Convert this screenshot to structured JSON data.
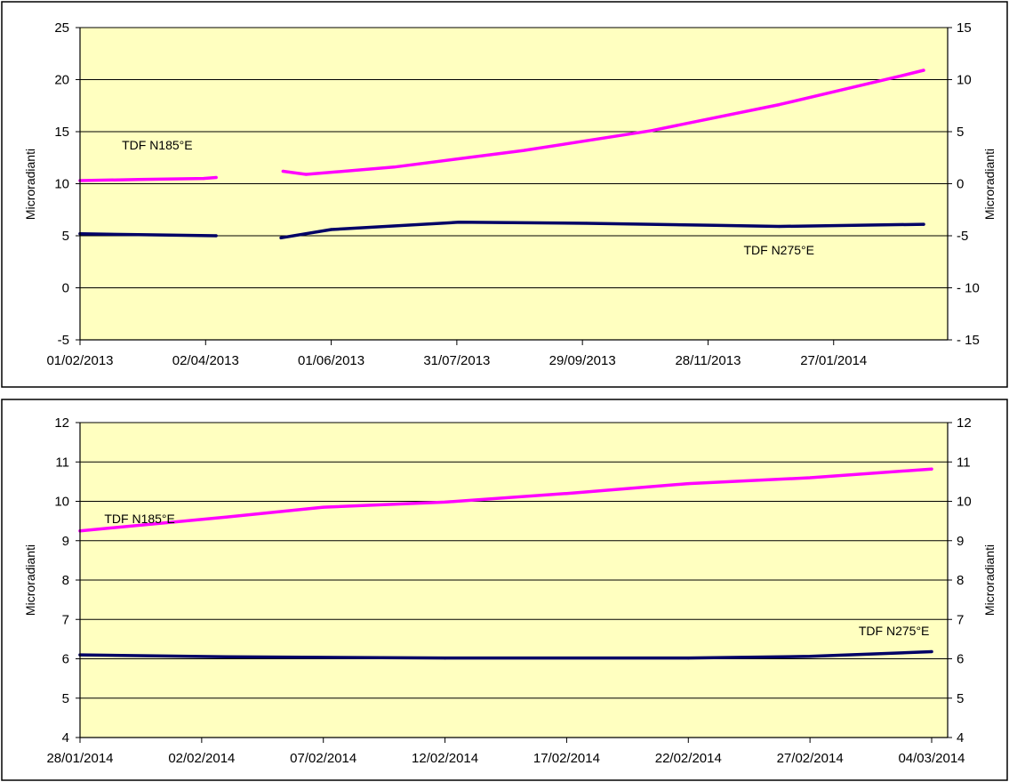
{
  "chart_data": [
    {
      "type": "line",
      "x_start": "01/02/2013",
      "x_end": "11/03/2014",
      "x_tick_labels": [
        "01/02/2013",
        "02/04/2013",
        "01/06/2013",
        "31/07/2013",
        "29/09/2013",
        "28/11/2013",
        "27/01/2014"
      ],
      "ylabel_left": "Microradianti",
      "ylabel_right": "Microradianti",
      "ylim_left": [
        -5,
        25
      ],
      "ylim_right": [
        -15,
        15
      ],
      "yticks_left": [
        "-5",
        "0",
        "5",
        "10",
        "15",
        "20",
        "25"
      ],
      "yticks_right": [
        "- 15",
        "- 10",
        "-5",
        "0",
        "5",
        "10",
        "15"
      ],
      "grid": true,
      "plot_bg": "#ffffc0",
      "annotations": [
        {
          "text": "TDF N185°E",
          "x": "21/02/2013",
          "y": 13.3
        },
        {
          "text": "TDF N275°E",
          "x": "15/12/2013",
          "y": 3.2
        }
      ],
      "series": [
        {
          "label": "TDF N185°E",
          "color": "#ff00ff",
          "segments": [
            {
              "x": [
                "01/02/2013",
                "01/03/2013",
                "01/04/2013",
                "07/04/2013"
              ],
              "y": [
                10.3,
                10.4,
                10.5,
                10.6
              ]
            },
            {
              "x": [
                "09/05/2013",
                "20/05/2013",
                "01/07/2013",
                "01/09/2013",
                "01/11/2013",
                "01/01/2014",
                "01/03/2014",
                "11/03/2014"
              ],
              "y": [
                11.2,
                10.9,
                11.6,
                13.2,
                15.1,
                17.6,
                20.4,
                20.9
              ]
            }
          ]
        },
        {
          "label": "TDF N275°E",
          "color": "#000066",
          "segments": [
            {
              "x": [
                "01/02/2013",
                "01/03/2013",
                "07/04/2013"
              ],
              "y": [
                5.2,
                5.1,
                5.0
              ]
            },
            {
              "x": [
                "08/05/2013",
                "01/06/2013",
                "01/08/2013",
                "01/10/2013",
                "01/12/2013",
                "01/01/2014",
                "11/03/2014"
              ],
              "y": [
                4.8,
                5.6,
                6.3,
                6.2,
                6.0,
                5.9,
                6.1
              ]
            }
          ]
        }
      ]
    },
    {
      "type": "line",
      "x_start": "28/01/2014",
      "x_end": "04/03/2014",
      "x_tick_labels": [
        "28/01/2014",
        "02/02/2014",
        "07/02/2014",
        "12/02/2014",
        "17/02/2014",
        "22/02/2014",
        "27/02/2014",
        "04/03/2014"
      ],
      "ylabel_left": "Microradianti",
      "ylabel_right": "Microradianti",
      "ylim_left": [
        4,
        12
      ],
      "ylim_right": [
        4,
        12
      ],
      "yticks_left": [
        "4",
        "5",
        "6",
        "7",
        "8",
        "9",
        "10",
        "11",
        "12"
      ],
      "yticks_right": [
        "4",
        "5",
        "6",
        "7",
        "8",
        "9",
        "10",
        "11",
        "12"
      ],
      "grid": true,
      "plot_bg": "#ffffc0",
      "annotations": [
        {
          "text": "TDF N185°E",
          "x": "29/01/2014",
          "y": 9.45
        },
        {
          "text": "TDF N275°E",
          "x": "29/02/2014",
          "y": 6.6
        }
      ],
      "series": [
        {
          "label": "TDF N185°E",
          "color": "#ff00ff",
          "segments": [
            {
              "x": [
                "28/01/2014",
                "03/02/2014",
                "07/02/2014",
                "12/02/2014",
                "17/02/2014",
                "22/02/2014",
                "27/02/2014",
                "04/03/2014"
              ],
              "y": [
                9.25,
                9.6,
                9.85,
                9.98,
                10.2,
                10.45,
                10.6,
                10.82
              ]
            }
          ]
        },
        {
          "label": "TDF N275°E",
          "color": "#000066",
          "segments": [
            {
              "x": [
                "28/01/2014",
                "03/02/2014",
                "12/02/2014",
                "22/02/2014",
                "27/02/2014",
                "04/03/2014"
              ],
              "y": [
                6.1,
                6.05,
                6.02,
                6.02,
                6.06,
                6.18
              ]
            }
          ]
        }
      ]
    }
  ]
}
